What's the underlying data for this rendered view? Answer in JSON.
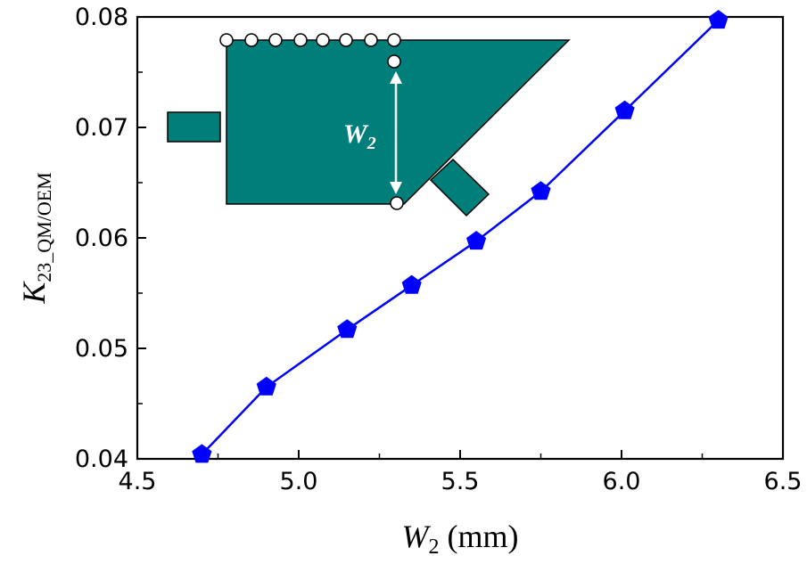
{
  "chart_data": {
    "type": "line",
    "title": "",
    "xlabel_main": "W",
    "xlabel_sub": "2",
    "xlabel_unit": " (mm)",
    "ylabel_main": "K",
    "ylabel_sub": "23_QM/OEM",
    "xlim": [
      4.5,
      6.5
    ],
    "ylim": [
      0.04,
      0.08
    ],
    "x_ticks": [
      "4.5",
      "5.0",
      "5.5",
      "6.0",
      "6.5"
    ],
    "y_ticks": [
      "0.04",
      "0.05",
      "0.06",
      "0.07",
      "0.08"
    ],
    "grid": false,
    "marker": "pentagon",
    "series": [
      {
        "x": [
          4.7,
          4.9,
          5.15,
          5.35,
          5.55,
          5.75,
          6.01,
          6.3
        ],
        "y": [
          0.0404,
          0.0465,
          0.0517,
          0.0557,
          0.0597,
          0.0642,
          0.0715,
          0.0797
        ]
      }
    ]
  },
  "inset": {
    "label_main": "W",
    "label_sub": "2"
  },
  "colors": {
    "series": "#0000ff",
    "inset_fill": "#007f7a",
    "inset_stroke": "#000000",
    "arrow": "#ffffff"
  }
}
